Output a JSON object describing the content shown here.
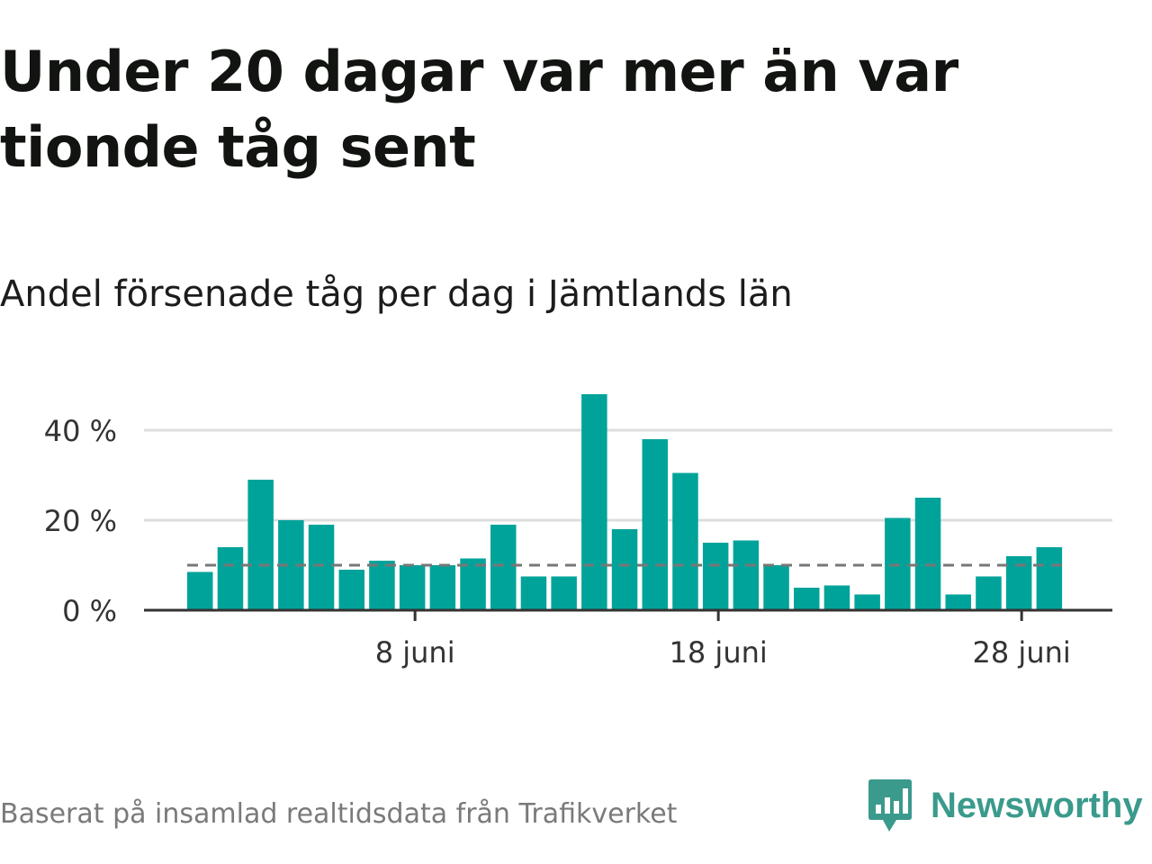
{
  "title": "Under 20 dagar var mer än var tionde tåg sent",
  "subtitle": "Andel försenade tåg per dag i Jämtlands län",
  "source": "Baserat på insamlad realtidsdata från Trafikverket",
  "brand": {
    "name": "Newsworthy",
    "icon": "newsworthy-logo-icon",
    "color": "#3a9a8c"
  },
  "colors": {
    "bar": "#00a39a",
    "reference_line": "#777777",
    "grid": "#dddddd",
    "axis": "#333333"
  },
  "chart_data": {
    "type": "bar",
    "x_unit": "day of June",
    "x": [
      1,
      2,
      3,
      4,
      5,
      6,
      7,
      8,
      9,
      10,
      11,
      12,
      13,
      14,
      15,
      16,
      17,
      18,
      19,
      20,
      21,
      22,
      23,
      24,
      25,
      26,
      27,
      28,
      29
    ],
    "values": [
      8.5,
      14,
      29,
      20,
      19,
      9,
      11,
      10,
      10,
      11.5,
      19,
      7.5,
      7.5,
      48,
      18,
      38,
      30.5,
      15,
      15.5,
      10,
      5,
      5.5,
      3.5,
      20.5,
      25,
      3.5,
      7.5,
      12,
      14
    ],
    "y_unit": "%",
    "ylim": [
      0,
      48
    ],
    "y_ticks": [
      0,
      20,
      40
    ],
    "y_tick_labels": [
      "0 %",
      "20 %",
      "40 %"
    ],
    "x_ticks": [
      8,
      18,
      28
    ],
    "x_tick_labels": [
      "8 juni",
      "18 juni",
      "28 juni"
    ],
    "reference_line": {
      "value": 10,
      "style": "dashed"
    },
    "grid": true,
    "legend": false
  }
}
